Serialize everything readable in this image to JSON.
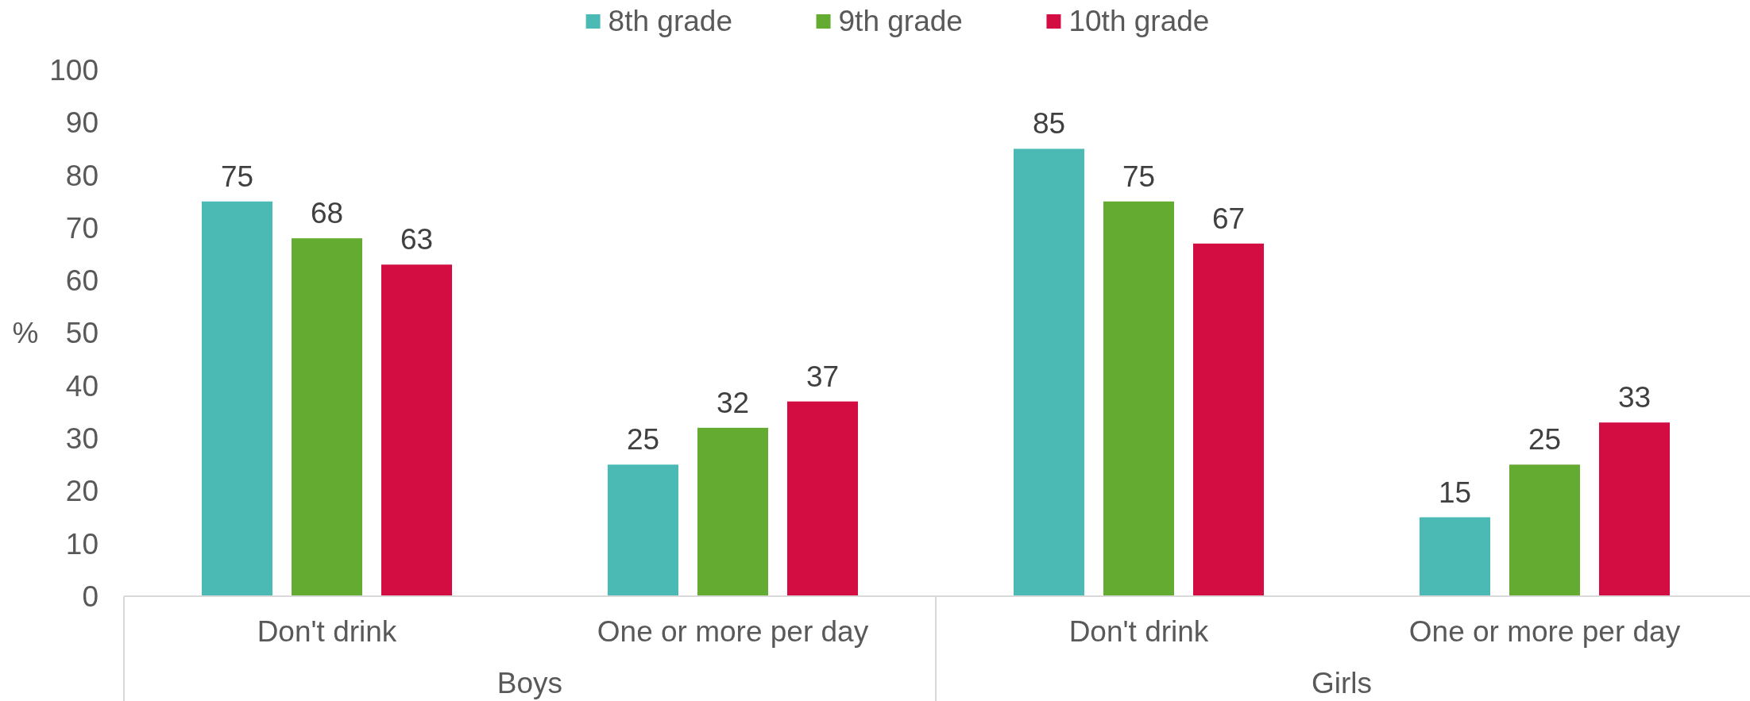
{
  "chart_data": {
    "type": "bar",
    "ylabel": "%",
    "legend": "top",
    "data_labels": true,
    "categories": [
      "Don't drink",
      "One or more per day",
      "Don't drink",
      "One or more per day"
    ],
    "annotations": [
      "Boys",
      "Girls"
    ],
    "ylim": [
      0,
      100
    ],
    "yticks": [
      0,
      10,
      20,
      30,
      40,
      50,
      60,
      70,
      80,
      90,
      100
    ],
    "series": [
      {
        "name": "8th grade",
        "color": "#4bbab5",
        "values": [
          75,
          25,
          85,
          15
        ]
      },
      {
        "name": "9th grade",
        "color": "#64ab32",
        "values": [
          68,
          32,
          75,
          25
        ]
      },
      {
        "name": "10th grade",
        "color": "#d30c42",
        "values": [
          63,
          37,
          67,
          33
        ]
      }
    ]
  }
}
